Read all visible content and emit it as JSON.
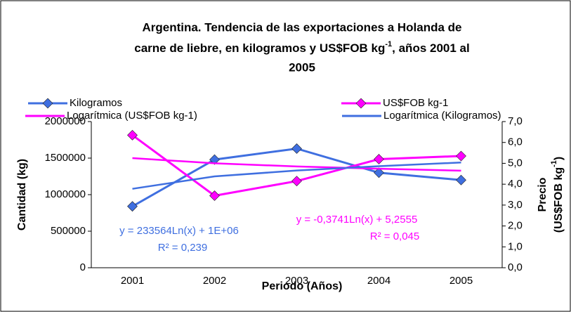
{
  "chart_data": {
    "type": "line",
    "title": [
      "Argentina. Tendencia de las exportaciones a Holanda de",
      "carne de liebre, en kilogramos y US$FOB kg",
      "-1",
      ", años 2001 al",
      "2005"
    ],
    "x_label": "Periodo (Años)",
    "y_label": "Cantidad (kg)",
    "y2_label": [
      "Precio",
      "(US$FOB kg",
      "-1",
      ")"
    ],
    "categories": [
      "2001",
      "2002",
      "2003",
      "2004",
      "2005"
    ],
    "ylim": [
      0,
      2000000
    ],
    "yticks": [
      0,
      500000,
      1000000,
      1500000,
      2000000
    ],
    "y2lim": [
      0,
      7
    ],
    "y2ticks": [
      {
        "value": 0,
        "label": "0,0"
      },
      {
        "value": 1,
        "label": "1,0"
      },
      {
        "value": 2,
        "label": "2,0"
      },
      {
        "value": 3,
        "label": "3,0"
      },
      {
        "value": 4,
        "label": "4,0"
      },
      {
        "value": 5,
        "label": "5,0"
      },
      {
        "value": 6,
        "label": "6,0"
      },
      {
        "value": 7,
        "label": "7,0"
      }
    ],
    "series": [
      {
        "name": "Kilogramos",
        "color": "#3f6fe0",
        "marker": "diamond",
        "values": [
          840000,
          1480000,
          1630000,
          1300000,
          1200000
        ]
      },
      {
        "name": "US$FOB kg-1",
        "color": "#ff00ff",
        "marker": "diamond",
        "axis": "y2",
        "values": [
          6.35,
          3.45,
          4.15,
          5.2,
          5.35
        ]
      },
      {
        "name": "Logarítmica (US$FOB kg-1)",
        "color": "#ff00ff",
        "axis": "y2",
        "values": [
          5.25,
          5.0,
          4.85,
          4.74,
          4.65
        ]
      },
      {
        "name": "Logarítmica (Kilogramos)",
        "color": "#3f6fe0",
        "values": [
          1080000,
          1250000,
          1330000,
          1390000,
          1440000
        ]
      }
    ],
    "annotations": [
      "y = 233564Ln(x) + 1E+06",
      "R² = 0,239",
      "y = -0,3741Ln(x) + 5,2555",
      "R² = 0,045"
    ],
    "grid": false
  }
}
